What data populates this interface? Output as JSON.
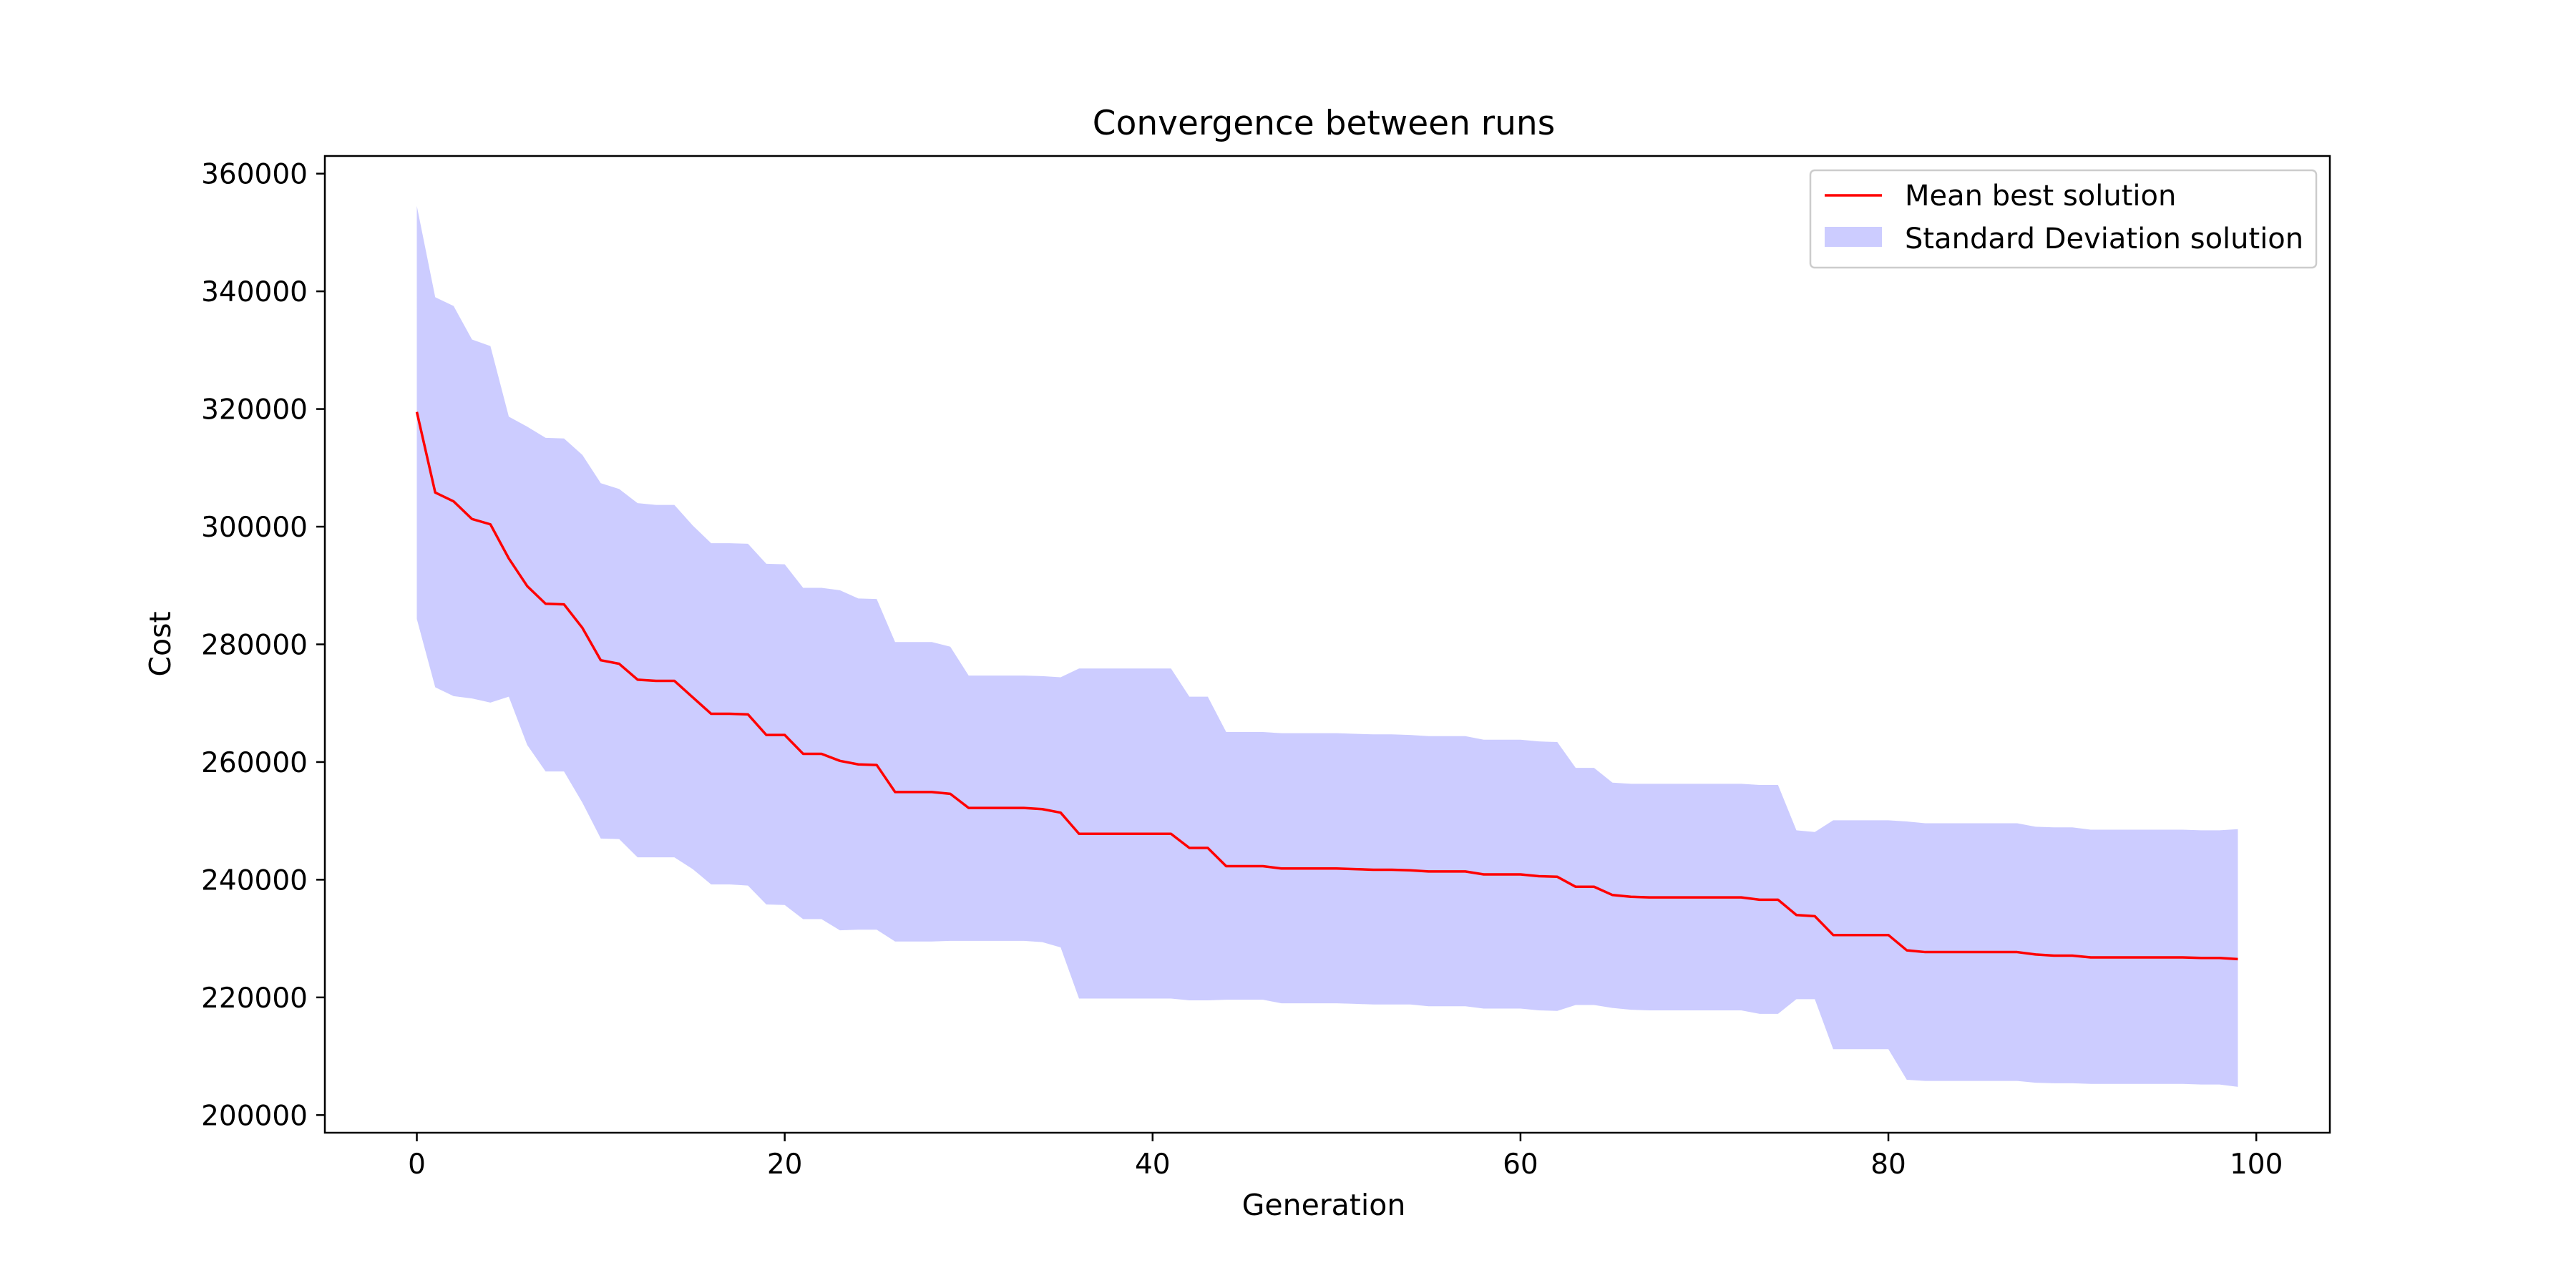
{
  "chart_data": {
    "type": "line",
    "title": "Convergence between runs",
    "xlabel": "Generation",
    "ylabel": "Cost",
    "xlim": [
      -5,
      104
    ],
    "ylim": [
      197000,
      363000
    ],
    "xticks": [
      0,
      20,
      40,
      60,
      80,
      100
    ],
    "yticks": [
      200000,
      220000,
      240000,
      260000,
      280000,
      300000,
      320000,
      340000,
      360000
    ],
    "grid": false,
    "legend_position": "top-right",
    "colors": {
      "mean_line": "#ff0000",
      "std_band": "#ccccff"
    },
    "x": [
      0,
      1,
      2,
      3,
      4,
      5,
      6,
      7,
      8,
      9,
      10,
      11,
      12,
      13,
      14,
      15,
      16,
      17,
      18,
      19,
      20,
      21,
      22,
      23,
      24,
      25,
      26,
      27,
      28,
      29,
      30,
      31,
      32,
      33,
      34,
      35,
      36,
      37,
      38,
      39,
      40,
      41,
      42,
      43,
      44,
      45,
      46,
      47,
      48,
      49,
      50,
      51,
      52,
      53,
      54,
      55,
      56,
      57,
      58,
      59,
      60,
      61,
      62,
      63,
      64,
      65,
      66,
      67,
      68,
      69,
      70,
      71,
      72,
      73,
      74,
      75,
      76,
      77,
      78,
      79,
      80,
      81,
      82,
      83,
      84,
      85,
      86,
      87,
      88,
      89,
      90,
      91,
      92,
      93,
      94,
      95,
      96,
      97,
      98,
      99
    ],
    "series": [
      {
        "name": "Mean best solution",
        "values": [
          319500,
          305800,
          304300,
          301300,
          300400,
          294600,
          289900,
          286900,
          286800,
          282800,
          277300,
          276700,
          274000,
          273800,
          273800,
          271000,
          268200,
          268200,
          268100,
          264600,
          264600,
          261400,
          261400,
          260200,
          259600,
          259500,
          254900,
          254900,
          254900,
          254600,
          252200,
          252200,
          252200,
          252200,
          252000,
          251400,
          247800,
          247800,
          247800,
          247800,
          247800,
          247800,
          245400,
          245400,
          242300,
          242300,
          242300,
          241900,
          241900,
          241900,
          241900,
          241800,
          241700,
          241700,
          241600,
          241400,
          241400,
          241400,
          240900,
          240900,
          240900,
          240600,
          240500,
          238800,
          238800,
          237400,
          237100,
          237000,
          237000,
          237000,
          237000,
          237000,
          237000,
          236600,
          236600,
          234000,
          233800,
          230600,
          230600,
          230600,
          230600,
          228000,
          227700,
          227700,
          227700,
          227700,
          227700,
          227700,
          227300,
          227100,
          227100,
          226800,
          226800,
          226800,
          226800,
          226800,
          226800,
          226700,
          226700,
          226500
        ]
      },
      {
        "name": "Standard Deviation solution",
        "upper": [
          354500,
          339000,
          337500,
          331800,
          330700,
          318700,
          317000,
          315100,
          315000,
          312200,
          307400,
          306400,
          304000,
          303700,
          303700,
          300200,
          297200,
          297200,
          297100,
          293700,
          293600,
          289600,
          289600,
          289200,
          287800,
          287700,
          280400,
          280400,
          280400,
          279600,
          274700,
          274700,
          274700,
          274700,
          274600,
          274400,
          275900,
          275900,
          275900,
          275900,
          275900,
          275900,
          271100,
          271100,
          265100,
          265100,
          265100,
          264900,
          264900,
          264900,
          264900,
          264800,
          264700,
          264700,
          264600,
          264400,
          264400,
          264400,
          263800,
          263800,
          263800,
          263500,
          263400,
          259000,
          259000,
          256500,
          256300,
          256300,
          256300,
          256300,
          256300,
          256300,
          256300,
          256100,
          256100,
          248400,
          248100,
          250100,
          250100,
          250100,
          250100,
          249900,
          249600,
          249600,
          249600,
          249600,
          249600,
          249600,
          249000,
          248900,
          248900,
          248500,
          248500,
          248500,
          248500,
          248500,
          248500,
          248400,
          248400,
          248600
        ],
        "lower": [
          284300,
          272700,
          271200,
          270800,
          270100,
          271100,
          262900,
          258400,
          258400,
          253100,
          247000,
          246900,
          243800,
          243800,
          243800,
          241800,
          239200,
          239200,
          239000,
          235800,
          235700,
          233300,
          233300,
          231400,
          231500,
          231500,
          229500,
          229500,
          229500,
          229600,
          229600,
          229600,
          229600,
          229600,
          229400,
          228500,
          219800,
          219800,
          219800,
          219800,
          219800,
          219800,
          219500,
          219500,
          219600,
          219600,
          219600,
          219000,
          219000,
          219000,
          219000,
          218900,
          218800,
          218800,
          218800,
          218500,
          218500,
          218500,
          218100,
          218100,
          218100,
          217800,
          217700,
          218700,
          218700,
          218200,
          217900,
          217800,
          217800,
          217800,
          217800,
          217800,
          217800,
          217200,
          217200,
          219700,
          219700,
          211200,
          211200,
          211200,
          211200,
          206000,
          205800,
          205800,
          205800,
          205800,
          205800,
          205800,
          205500,
          205400,
          205400,
          205300,
          205300,
          205300,
          205300,
          205300,
          205300,
          205200,
          205200,
          204800
        ]
      }
    ]
  }
}
